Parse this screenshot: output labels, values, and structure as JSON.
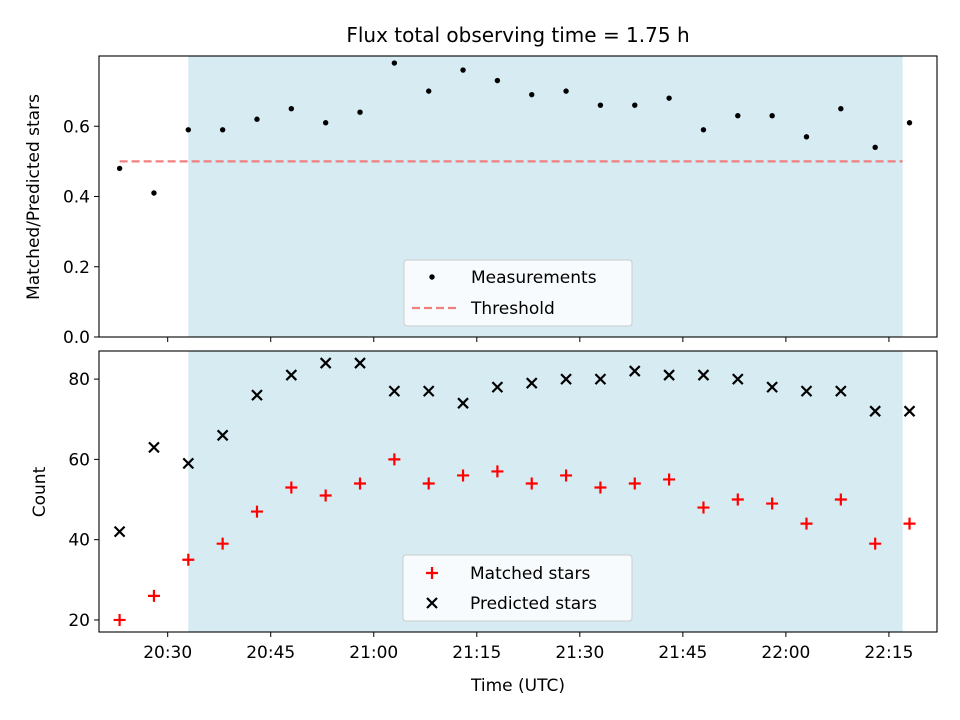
{
  "chart_data": [
    {
      "type": "scatter",
      "title": "Flux total observing time = 1.75 h",
      "xlabel": "",
      "ylabel": "Matched/Predicted stars",
      "ylim": [
        0,
        0.8
      ],
      "yticks": [
        "0.0",
        "0.2",
        "0.4",
        "0.6"
      ],
      "ytick_values": [
        0,
        0.2,
        0.4,
        0.6
      ],
      "x": [
        "20:23",
        "20:28",
        "20:33",
        "20:38",
        "20:43",
        "20:48",
        "20:53",
        "20:58",
        "21:03",
        "21:08",
        "21:13",
        "21:18",
        "21:23",
        "21:28",
        "21:33",
        "21:38",
        "21:43",
        "21:48",
        "21:53",
        "21:58",
        "22:03",
        "22:08",
        "22:13",
        "22:18"
      ],
      "shaded_range": [
        "20:33",
        "22:17"
      ],
      "threshold": {
        "name": "Threshold",
        "value": 0.5,
        "x_range": [
          "20:23",
          "22:17"
        ],
        "color": "#f08080"
      },
      "series": [
        {
          "name": "Measurements",
          "color": "#000000",
          "values": [
            0.48,
            0.41,
            0.59,
            0.59,
            0.62,
            0.65,
            0.61,
            0.64,
            0.78,
            0.7,
            0.76,
            0.73,
            0.69,
            0.7,
            0.66,
            0.66,
            0.68,
            0.59,
            0.63,
            0.63,
            0.57,
            0.65,
            0.54,
            0.61
          ]
        }
      ],
      "legend_location": "bottom-center"
    },
    {
      "type": "scatter",
      "title": "",
      "xlabel": "Time (UTC)",
      "ylabel": "Count",
      "ylim": [
        17,
        87
      ],
      "xlim": [
        "20:20",
        "22:22"
      ],
      "yticks": [
        "20",
        "40",
        "60",
        "80"
      ],
      "ytick_values": [
        20,
        40,
        60,
        80
      ],
      "xticks": [
        "20:30",
        "20:45",
        "21:00",
        "21:15",
        "21:30",
        "21:45",
        "22:00",
        "22:15"
      ],
      "x": [
        "20:23",
        "20:28",
        "20:33",
        "20:38",
        "20:43",
        "20:48",
        "20:53",
        "20:58",
        "21:03",
        "21:08",
        "21:13",
        "21:18",
        "21:23",
        "21:28",
        "21:33",
        "21:38",
        "21:43",
        "21:48",
        "21:53",
        "21:58",
        "22:03",
        "22:08",
        "22:13",
        "22:18"
      ],
      "shaded_range": [
        "20:33",
        "22:17"
      ],
      "series": [
        {
          "name": "Matched stars",
          "color": "#ff0000",
          "marker": "plus",
          "values": [
            20,
            26,
            35,
            39,
            47,
            53,
            51,
            54,
            60,
            54,
            56,
            57,
            54,
            56,
            53,
            54,
            55,
            48,
            50,
            49,
            44,
            50,
            39,
            44
          ]
        },
        {
          "name": "Predicted stars",
          "color": "#000000",
          "marker": "x",
          "values": [
            42,
            63,
            59,
            66,
            76,
            81,
            84,
            84,
            77,
            77,
            74,
            78,
            79,
            80,
            80,
            82,
            81,
            81,
            80,
            78,
            77,
            77,
            72,
            72
          ]
        }
      ],
      "legend_location": "bottom-center"
    }
  ],
  "shade_color": "#add8e6"
}
